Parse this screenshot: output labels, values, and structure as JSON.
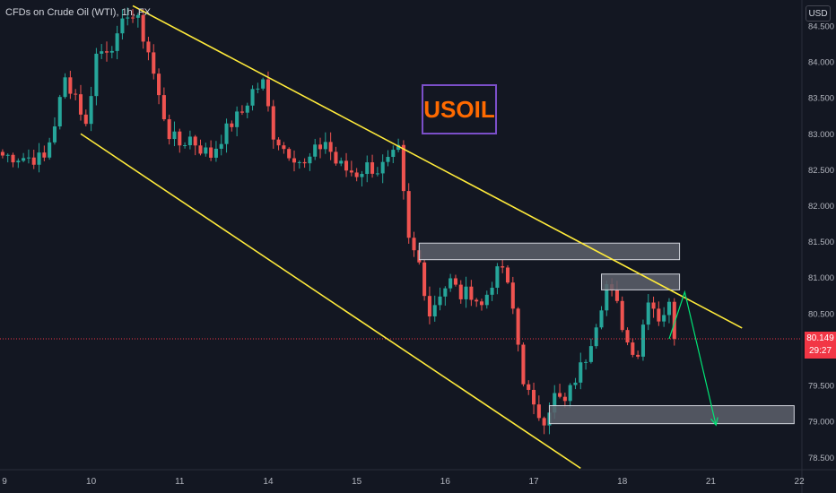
{
  "header": {
    "title": "CFDs on Crude Oil (WTI), 1h, FX"
  },
  "toolbar": {
    "currency_label": "USD"
  },
  "annotation": {
    "label": "USOIL"
  },
  "price_marker": {
    "price": "80.149",
    "countdown": "29:27"
  },
  "colors": {
    "background": "#131722",
    "up_candle": "#26a69a",
    "down_candle": "#ef5350",
    "channel_line": "#ffeb3b",
    "zone_fill": "#5d606b",
    "forecast_arrow": "#00e676",
    "price_line": "#f23645",
    "label_border": "#7b4fc9",
    "label_text": "#ff6a00"
  },
  "chart_data": {
    "type": "candlestick",
    "y_axis": {
      "range": [
        78.33,
        84.86
      ],
      "ticks": [
        "84.500",
        "84.000",
        "83.500",
        "83.000",
        "82.500",
        "82.000",
        "81.500",
        "81.000",
        "80.500",
        "80.000",
        "79.500",
        "79.000",
        "78.500"
      ],
      "tick_values": [
        84.5,
        84.0,
        83.5,
        83.0,
        82.5,
        82.0,
        81.5,
        81.0,
        80.5,
        80.0,
        79.5,
        79.0,
        78.5
      ]
    },
    "x_axis": {
      "labels": [
        "9",
        "10",
        "11",
        "14",
        "15",
        "16",
        "17",
        "18",
        "21",
        "22"
      ],
      "label_bars": [
        0,
        17,
        34,
        51,
        68,
        85,
        102,
        119,
        136,
        153
      ],
      "total_bars": 154,
      "candles_drawn": 130
    },
    "current_price": 80.149,
    "anchors": [
      [
        0,
        82.7
      ],
      [
        8,
        82.65
      ],
      [
        10,
        83.15
      ],
      [
        12,
        83.75
      ],
      [
        14,
        83.55
      ],
      [
        16,
        83.1
      ],
      [
        18,
        84.1
      ],
      [
        20,
        84.2
      ],
      [
        22,
        84.3
      ],
      [
        24,
        84.7
      ],
      [
        26,
        84.55
      ],
      [
        28,
        84.15
      ],
      [
        30,
        83.5
      ],
      [
        32,
        83.0
      ],
      [
        34,
        82.85
      ],
      [
        36,
        82.95
      ],
      [
        38,
        82.8
      ],
      [
        40,
        82.7
      ],
      [
        42,
        82.95
      ],
      [
        44,
        83.15
      ],
      [
        46,
        83.3
      ],
      [
        48,
        83.6
      ],
      [
        50,
        83.7
      ],
      [
        52,
        83.0
      ],
      [
        54,
        82.8
      ],
      [
        56,
        82.7
      ],
      [
        58,
        82.55
      ],
      [
        60,
        82.75
      ],
      [
        62,
        82.9
      ],
      [
        64,
        82.6
      ],
      [
        66,
        82.5
      ],
      [
        68,
        82.45
      ],
      [
        70,
        82.55
      ],
      [
        72,
        82.5
      ],
      [
        74,
        82.6
      ],
      [
        76,
        82.75
      ],
      [
        78,
        81.5
      ],
      [
        80,
        81.2
      ],
      [
        82,
        80.5
      ],
      [
        84,
        80.8
      ],
      [
        86,
        80.95
      ],
      [
        88,
        80.75
      ],
      [
        90,
        80.8
      ],
      [
        92,
        80.6
      ],
      [
        94,
        80.95
      ],
      [
        96,
        81.15
      ],
      [
        98,
        80.55
      ],
      [
        100,
        79.6
      ],
      [
        102,
        79.15
      ],
      [
        104,
        79.05
      ],
      [
        106,
        79.35
      ],
      [
        108,
        79.25
      ],
      [
        110,
        79.6
      ],
      [
        112,
        79.9
      ],
      [
        114,
        80.4
      ],
      [
        116,
        80.9
      ],
      [
        118,
        80.6
      ],
      [
        120,
        80.1
      ],
      [
        122,
        79.95
      ],
      [
        124,
        80.75
      ],
      [
        126,
        80.45
      ],
      [
        128,
        80.6
      ],
      [
        129,
        80.149
      ]
    ],
    "channel": {
      "upper": [
        [
          25,
          84.78
        ],
        [
          142,
          80.3
        ]
      ],
      "lower": [
        [
          15,
          83.0
        ],
        [
          111,
          78.35
        ]
      ]
    },
    "zones": [
      {
        "x": [
          80,
          130
        ],
        "y": [
          81.25,
          81.48
        ]
      },
      {
        "x": [
          115,
          130
        ],
        "y": [
          80.83,
          81.05
        ]
      },
      {
        "x": [
          105,
          152
        ],
        "y": [
          78.97,
          79.22
        ]
      }
    ],
    "forecast": [
      [
        128,
        80.149
      ],
      [
        131,
        80.8
      ],
      [
        137,
        78.95
      ]
    ]
  }
}
